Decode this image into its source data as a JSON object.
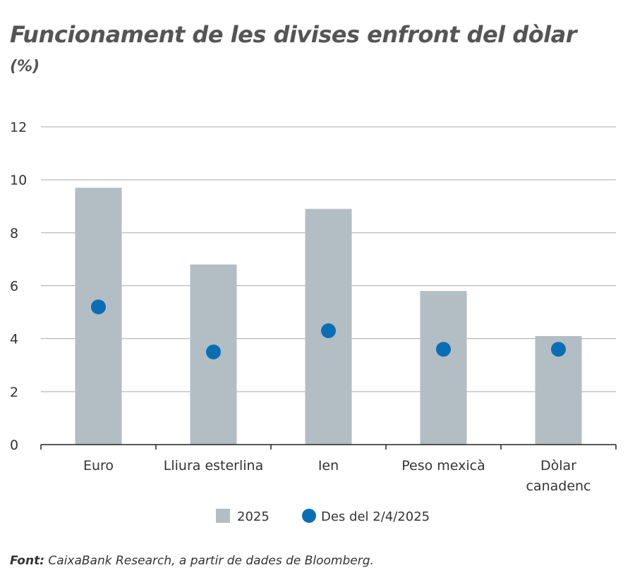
{
  "chart_data": {
    "type": "bar",
    "title": "Funcionament de les divises enfront del dòlar",
    "subtitle": "(%)",
    "categories": [
      "Euro",
      "Lliura esterlina",
      "Ien",
      "Peso mexicà",
      "Dòlar canadenc"
    ],
    "series": [
      {
        "name": "2025",
        "kind": "bar",
        "color": "#b2bec3",
        "values": [
          9.7,
          6.8,
          8.9,
          5.8,
          4.1
        ]
      },
      {
        "name": "Des del 2/4/2025",
        "kind": "dot",
        "color": "#0a6eb4",
        "values": [
          5.2,
          3.5,
          4.3,
          3.6,
          3.6
        ]
      }
    ],
    "ylim": [
      0,
      12
    ],
    "yticks": [
      "0",
      "2",
      "4",
      "6",
      "8",
      "10",
      "12"
    ],
    "grid": true,
    "legend": "bottom"
  },
  "source": {
    "label": "Font:",
    "text": " CaixaBank Research, a partir de dades de Bloomberg."
  }
}
